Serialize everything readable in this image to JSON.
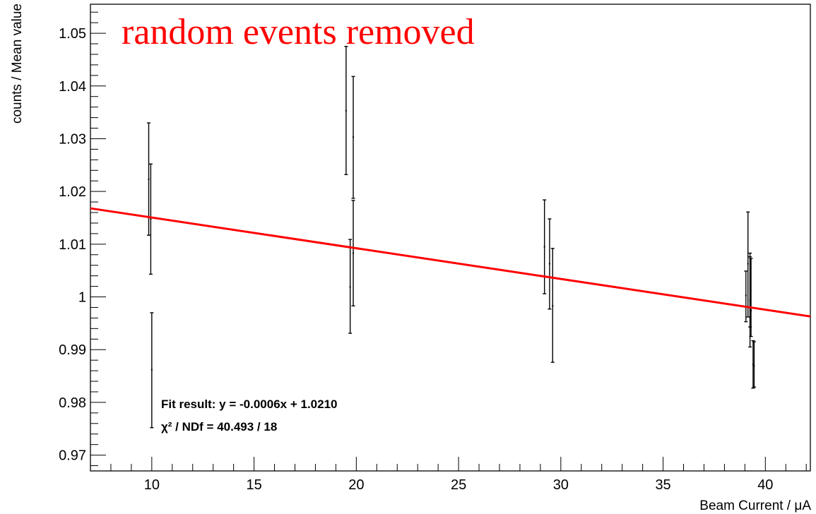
{
  "chart_data": {
    "type": "scatter",
    "title": "random events removed",
    "xlabel": "Beam Current / μA",
    "ylabel": "counts / Mean value",
    "xlim": [
      7,
      42.2
    ],
    "ylim": [
      0.967,
      1.0555
    ],
    "x_ticks": [
      10,
      15,
      20,
      25,
      30,
      35,
      40
    ],
    "y_ticks": [
      0.97,
      0.98,
      0.99,
      1,
      1.01,
      1.02,
      1.03,
      1.04,
      1.05
    ],
    "x_tick_labels": [
      "10",
      "15",
      "20",
      "25",
      "30",
      "35",
      "40"
    ],
    "y_tick_labels": [
      "0.97",
      "0.98",
      "0.99",
      "1",
      "1.01",
      "1.02",
      "1.03",
      "1.04",
      "1.05"
    ],
    "grid": false,
    "series": [
      {
        "type": "errorbar",
        "points": [
          {
            "x": 9.85,
            "y": 1.0223,
            "ylo": 1.0117,
            "yhi": 1.033
          },
          {
            "x": 9.95,
            "y": 1.0148,
            "ylo": 1.0043,
            "yhi": 1.0252
          },
          {
            "x": 10.0,
            "y": 0.9862,
            "ylo": 0.9752,
            "yhi": 0.997
          },
          {
            "x": 19.5,
            "y": 1.0353,
            "ylo": 1.0232,
            "yhi": 1.0475
          },
          {
            "x": 19.7,
            "y": 1.0019,
            "ylo": 0.9931,
            "yhi": 1.0109
          },
          {
            "x": 19.85,
            "y": 1.0303,
            "ylo": 1.0187,
            "yhi": 1.0418
          },
          {
            "x": 19.85,
            "y": 1.0083,
            "ylo": 0.9983,
            "yhi": 1.0183
          },
          {
            "x": 29.2,
            "y": 1.0095,
            "ylo": 1.0006,
            "yhi": 1.0184
          },
          {
            "x": 29.45,
            "y": 1.0063,
            "ylo": 0.9977,
            "yhi": 1.0148
          },
          {
            "x": 29.6,
            "y": 0.9983,
            "ylo": 0.9876,
            "yhi": 1.0092
          },
          {
            "x": 39.05,
            "y": 1.0003,
            "ylo": 0.9953,
            "yhi": 1.0049
          },
          {
            "x": 39.15,
            "y": 1.0063,
            "ylo": 0.9962,
            "yhi": 1.0161
          },
          {
            "x": 39.25,
            "y": 0.9993,
            "ylo": 0.9905,
            "yhi": 1.0083
          },
          {
            "x": 39.3,
            "y": 0.9974,
            "ylo": 0.9925,
            "yhi": 1.0073
          },
          {
            "x": 39.25,
            "y": 0.9979,
            "ylo": 0.9943,
            "yhi": 1.0076
          },
          {
            "x": 39.4,
            "y": 0.9872,
            "ylo": 0.9827,
            "yhi": 0.9917
          },
          {
            "x": 39.45,
            "y": 0.9869,
            "ylo": 0.9829,
            "yhi": 0.9915
          }
        ],
        "color": "#000000"
      },
      {
        "type": "line",
        "x": [
          7,
          42.2
        ],
        "y": [
          1.0168,
          0.9963
        ],
        "color": "#ff0000"
      }
    ],
    "annotations": [
      "Fit result: y = -0.0006x + 1.0210",
      "χ² / NDf = 40.493 / 18"
    ]
  }
}
